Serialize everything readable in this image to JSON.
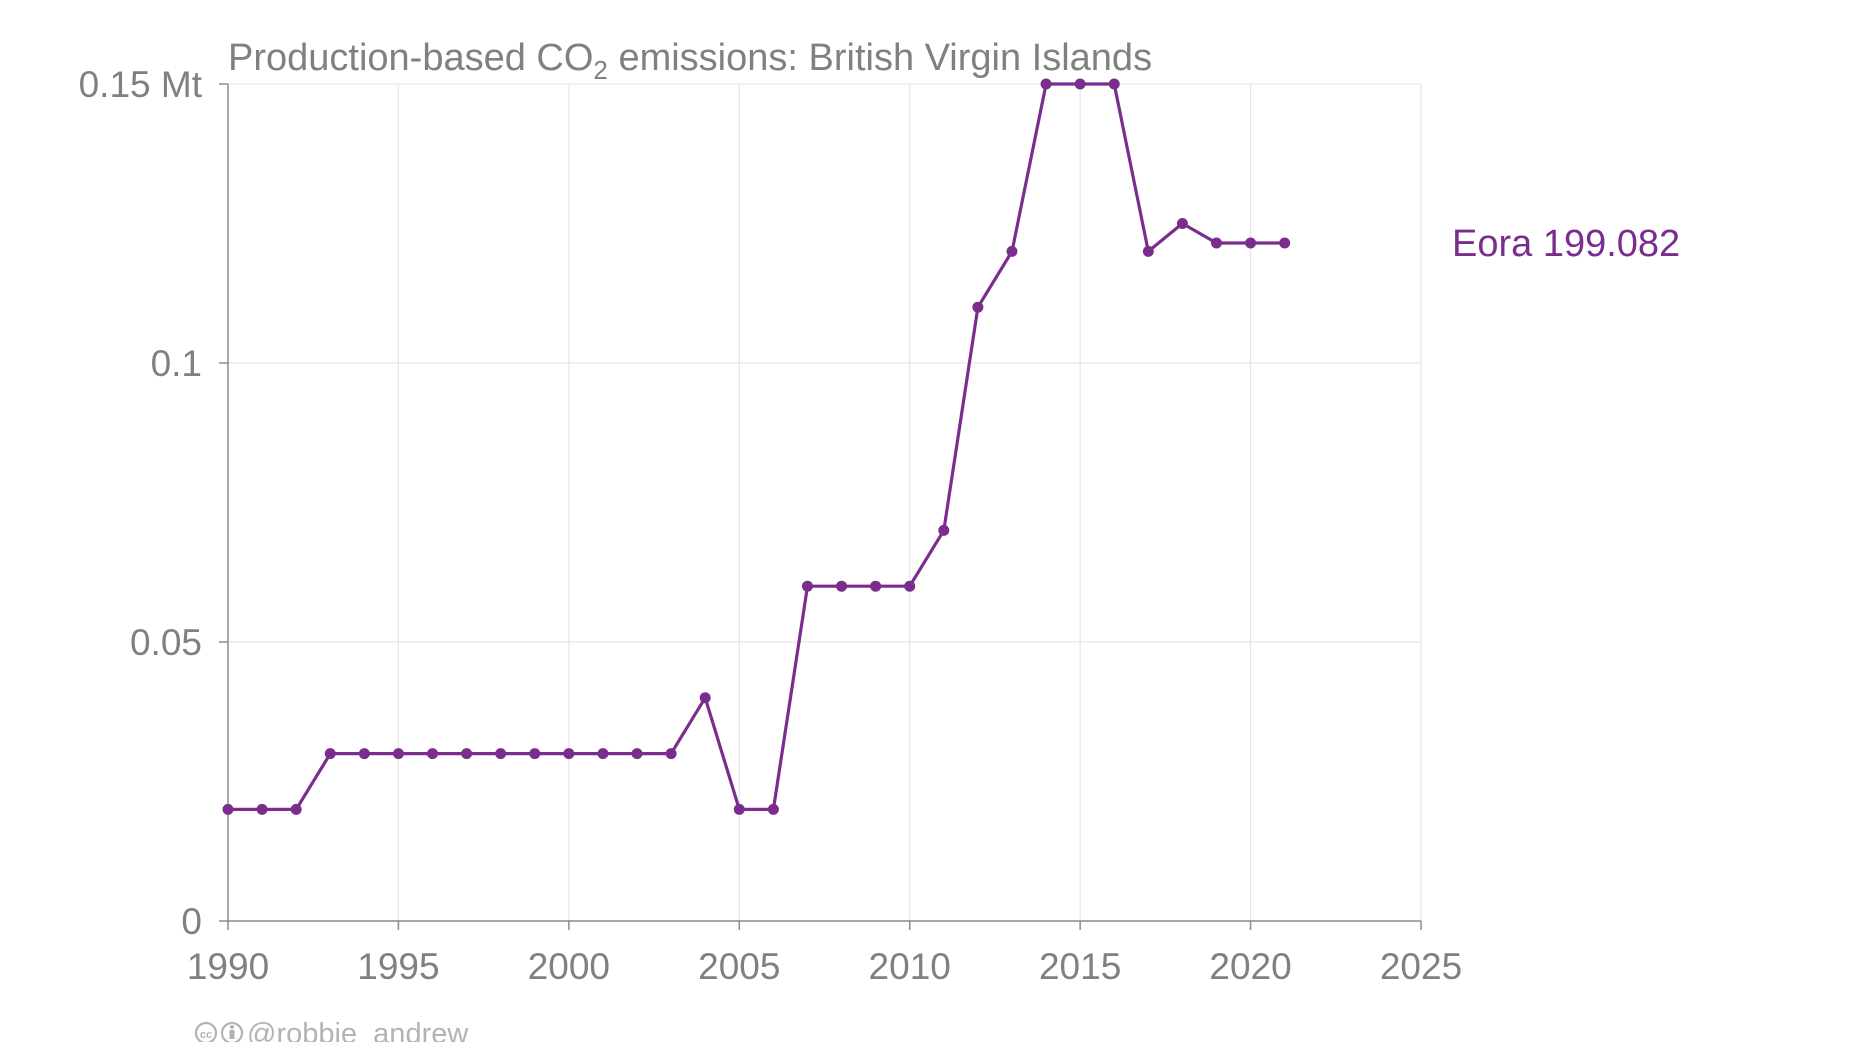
{
  "chart_data": {
    "type": "line",
    "title": {
      "prefix": "Production-based CO",
      "subscript": "2",
      "suffix": " emissions: British Virgin Islands"
    },
    "x": [
      1990,
      1991,
      1992,
      1993,
      1994,
      1995,
      1996,
      1997,
      1998,
      1999,
      2000,
      2001,
      2002,
      2003,
      2004,
      2005,
      2006,
      2007,
      2008,
      2009,
      2010,
      2011,
      2012,
      2013,
      2014,
      2015,
      2016,
      2017,
      2018,
      2019,
      2020,
      2021
    ],
    "series": [
      {
        "name": "Eora 199.082",
        "color": "#7b2d8e",
        "values": [
          0.02,
          0.02,
          0.02,
          0.03,
          0.03,
          0.03,
          0.03,
          0.03,
          0.03,
          0.03,
          0.03,
          0.03,
          0.03,
          0.03,
          0.04,
          0.02,
          0.02,
          0.06,
          0.06,
          0.06,
          0.06,
          0.07,
          0.11,
          0.12,
          0.15,
          0.15,
          0.15,
          0.12,
          0.125,
          0.1215,
          0.1215,
          0.1215
        ]
      }
    ],
    "xlim": [
      1990,
      2025
    ],
    "ylim": [
      0,
      0.15
    ],
    "x_ticks": [
      1990,
      1995,
      2000,
      2005,
      2010,
      2015,
      2020,
      2025
    ],
    "y_ticks": [
      {
        "value": 0,
        "label": "0"
      },
      {
        "value": 0.05,
        "label": "0.05"
      },
      {
        "value": 0.1,
        "label": "0.1"
      },
      {
        "value": 0.15,
        "label": "0.15 Mt"
      }
    ],
    "grid": true,
    "xlabel": "",
    "ylabel": ""
  },
  "credit": {
    "icons": [
      "creative-commons-icon",
      "attribution-icon"
    ],
    "text": "@robbie_andrew"
  }
}
